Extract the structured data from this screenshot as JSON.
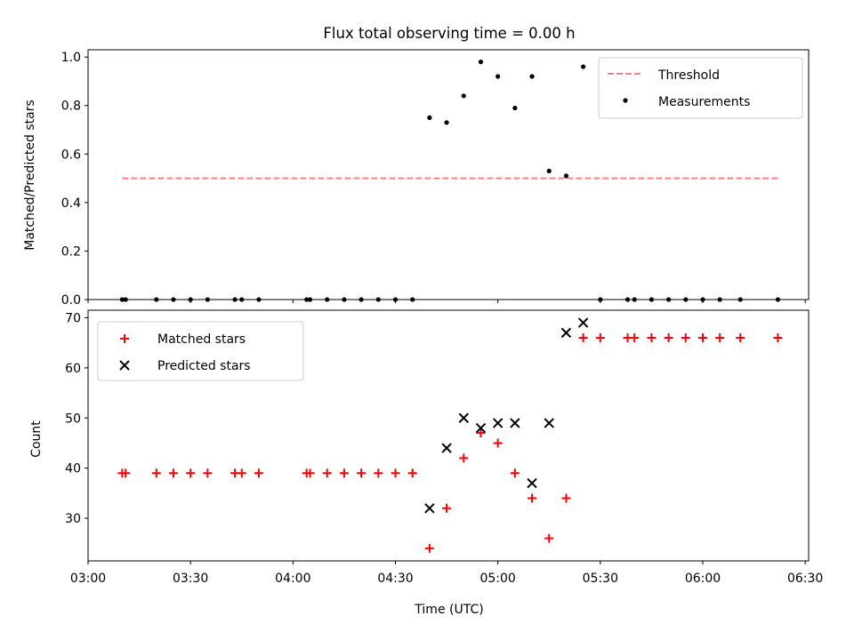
{
  "title": "Flux total observing time = 0.00 h",
  "colors": {
    "threshold": "#ff7f7f",
    "measurements": "#000000",
    "matched": "#ff0000",
    "predicted": "#000000"
  },
  "chart_data": [
    {
      "type": "scatter",
      "ylabel": "Matched/Predicted stars",
      "ylim": [
        0,
        1.03
      ],
      "yticks": [
        "0.0",
        "0.2",
        "0.4",
        "0.6",
        "0.8",
        "1.0"
      ],
      "ytick_values": [
        0,
        0.2,
        0.4,
        0.6,
        0.8,
        1.0
      ],
      "legend_position": "top-right",
      "series": [
        {
          "name": "Threshold",
          "kind": "dashed-line",
          "x": [
            "03:10",
            "06:22"
          ],
          "y": [
            0.5,
            0.5
          ]
        },
        {
          "name": "Measurements",
          "kind": "dot",
          "x": [
            "03:10",
            "03:11",
            "03:20",
            "03:25",
            "03:30",
            "03:35",
            "03:43",
            "03:45",
            "03:50",
            "04:04",
            "04:05",
            "04:10",
            "04:15",
            "04:20",
            "04:25",
            "04:30",
            "04:35",
            "04:40",
            "04:45",
            "04:50",
            "04:55",
            "05:00",
            "05:05",
            "05:10",
            "05:15",
            "05:20",
            "05:25",
            "05:30",
            "05:38",
            "05:40",
            "05:45",
            "05:50",
            "05:55",
            "06:00",
            "06:05",
            "06:11",
            "06:22"
          ],
          "y": [
            0,
            0,
            0,
            0,
            0,
            0,
            0,
            0,
            0,
            0,
            0,
            0,
            0,
            0,
            0,
            0,
            0,
            0.75,
            0.73,
            0.84,
            0.98,
            0.92,
            0.79,
            0.92,
            0.53,
            0.51,
            0.96,
            0,
            0,
            0,
            0,
            0,
            0,
            0,
            0,
            0,
            0
          ]
        }
      ]
    },
    {
      "type": "scatter",
      "xlabel": "Time (UTC)",
      "ylabel": "Count",
      "ylim": [
        21.5,
        71.5
      ],
      "yticks": [
        "30",
        "40",
        "50",
        "60",
        "70"
      ],
      "ytick_values": [
        30,
        40,
        50,
        60,
        70
      ],
      "xlim": [
        "03:00",
        "06:31"
      ],
      "xticks": [
        "03:00",
        "03:30",
        "04:00",
        "04:30",
        "05:00",
        "05:30",
        "06:00",
        "06:30"
      ],
      "legend_position": "top-left",
      "series": [
        {
          "name": "Matched stars",
          "kind": "plus",
          "x": [
            "03:10",
            "03:11",
            "03:20",
            "03:25",
            "03:30",
            "03:35",
            "03:43",
            "03:45",
            "03:50",
            "04:04",
            "04:05",
            "04:10",
            "04:15",
            "04:20",
            "04:25",
            "04:30",
            "04:35",
            "04:40",
            "04:45",
            "04:50",
            "04:55",
            "05:00",
            "05:05",
            "05:10",
            "05:15",
            "05:20",
            "05:25",
            "05:30",
            "05:38",
            "05:40",
            "05:45",
            "05:50",
            "05:55",
            "06:00",
            "06:05",
            "06:11",
            "06:22"
          ],
          "y": [
            39,
            39,
            39,
            39,
            39,
            39,
            39,
            39,
            39,
            39,
            39,
            39,
            39,
            39,
            39,
            39,
            39,
            24,
            32,
            42,
            47,
            45,
            39,
            34,
            26,
            34,
            66,
            66,
            66,
            66,
            66,
            66,
            66,
            66,
            66,
            66,
            66
          ]
        },
        {
          "name": "Predicted stars",
          "kind": "x",
          "x": [
            "04:40",
            "04:45",
            "04:50",
            "04:55",
            "05:00",
            "05:05",
            "05:10",
            "05:15",
            "05:20",
            "05:25"
          ],
          "y": [
            32,
            44,
            50,
            48,
            49,
            49,
            37,
            49,
            67,
            69
          ]
        }
      ]
    }
  ]
}
